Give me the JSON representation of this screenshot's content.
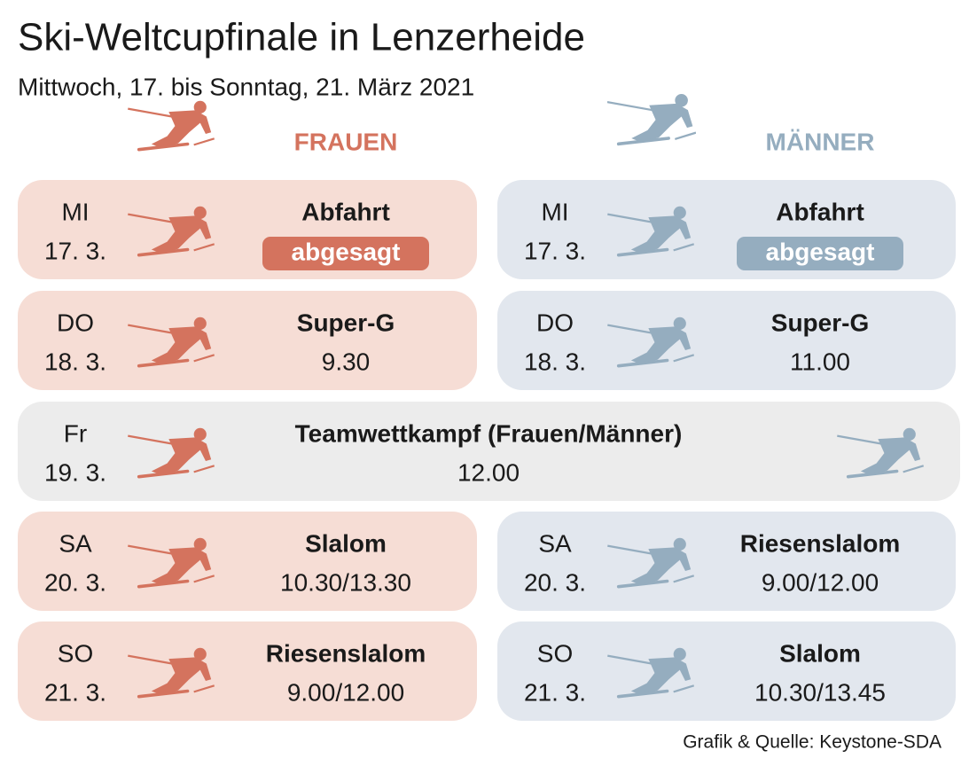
{
  "header": {
    "title": "Ski-Weltcupfinale in Lenzerheide",
    "subtitle": "Mittwoch, 17. bis Sonntag, 21. März 2021"
  },
  "columns": {
    "frauen": "FRAUEN",
    "maenner": "MÄNNER"
  },
  "frauen": [
    {
      "day": "MI",
      "date": "17. 3.",
      "event": "Abfahrt",
      "status": "abgesagt"
    },
    {
      "day": "DO",
      "date": "18. 3.",
      "event": "Super-G",
      "time": "9.30"
    },
    {
      "day": "SA",
      "date": "20. 3.",
      "event": "Slalom",
      "time": "10.30/13.30"
    },
    {
      "day": "SO",
      "date": "21. 3.",
      "event": "Riesenslalom",
      "time": "9.00/12.00"
    }
  ],
  "maenner": [
    {
      "day": "MI",
      "date": "17. 3.",
      "event": "Abfahrt",
      "status": "abgesagt"
    },
    {
      "day": "DO",
      "date": "18. 3.",
      "event": "Super-G",
      "time": "11.00"
    },
    {
      "day": "SA",
      "date": "20. 3.",
      "event": "Riesenslalom",
      "time": "9.00/12.00"
    },
    {
      "day": "SO",
      "date": "21. 3.",
      "event": "Slalom",
      "time": "10.30/13.45"
    }
  ],
  "team": {
    "day": "Fr",
    "date": "19. 3.",
    "event": "Teamwettkampf (Frauen/Männer)",
    "time": "12.00"
  },
  "source": "Grafik & Quelle: Keystone-SDA"
}
